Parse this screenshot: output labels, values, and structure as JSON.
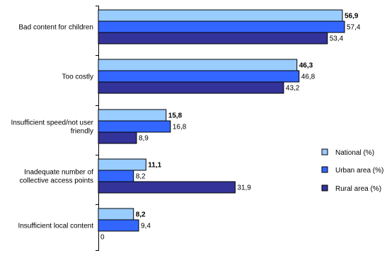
{
  "chart_data": {
    "type": "bar",
    "orientation": "horizontal",
    "categories": [
      "Bad content for children",
      "Too costly",
      "Insufficient speed/not user friendly",
      "Inadequate number of collective access points",
      "Insufficient local content"
    ],
    "category_lines": [
      [
        "Bad content for children"
      ],
      [
        "Too costly"
      ],
      [
        "Insufficient speed/not user",
        "friendly"
      ],
      [
        "Inadequate number of",
        "collective access points"
      ],
      [
        "Insufficient local content"
      ]
    ],
    "series": [
      {
        "name": "National (%)",
        "color": "#99ccff",
        "bold_labels": true,
        "values": [
          56.9,
          46.3,
          15.8,
          11.1,
          8.2
        ],
        "labels": [
          "56,9",
          "46,3",
          "15,8",
          "11,1",
          "8,2"
        ]
      },
      {
        "name": "Urban area (%)",
        "color": "#3366ff",
        "bold_labels": false,
        "values": [
          57.4,
          46.8,
          16.8,
          8.2,
          9.4
        ],
        "labels": [
          "57,4",
          "46,8",
          "16,8",
          "8,2",
          "9,4"
        ]
      },
      {
        "name": "Rural area (%)",
        "color": "#333399",
        "bold_labels": false,
        "values": [
          53.4,
          43.2,
          8.9,
          31.9,
          0
        ],
        "labels": [
          "53,4",
          "43,2",
          "8,9",
          "31,9",
          "0"
        ]
      }
    ],
    "xlim": [
      0,
      60
    ],
    "axis_tick_label": "0",
    "grid": false,
    "legend_position": "right"
  }
}
